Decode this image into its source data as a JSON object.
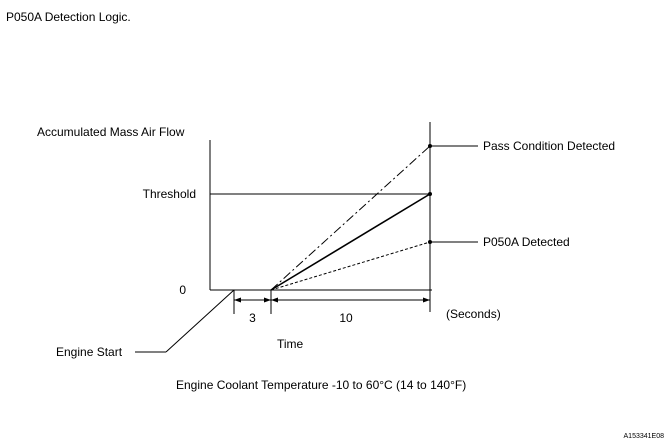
{
  "title": "P050A Detection Logic.",
  "y_axis_label": "Accumulated Mass Air Flow",
  "threshold_label": "Threshold",
  "zero_label": "0",
  "x_axis_label": "Time",
  "units_label": "(Seconds)",
  "interval_1": "3",
  "interval_2": "10",
  "engine_start_label": "Engine Start",
  "pass_label": "Pass Condition Detected",
  "detected_label": "P050A Detected",
  "condition_note": "Engine Coolant Temperature  -10 to 60°C (14 to 140°F)",
  "figure_code": "A153341E08"
}
